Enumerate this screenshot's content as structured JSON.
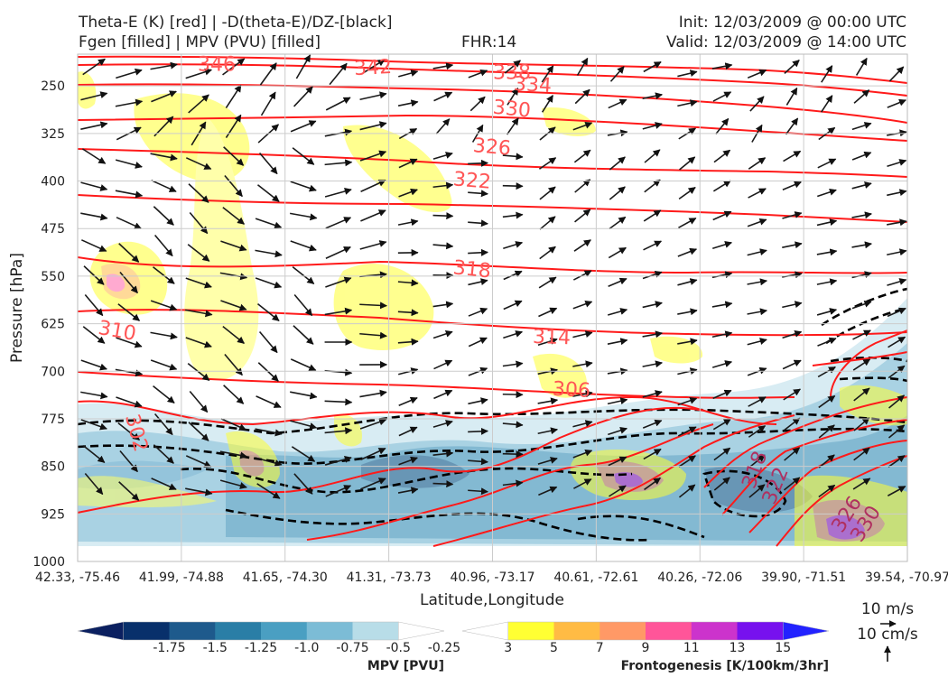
{
  "header": {
    "title_line1": "Theta-E (K) [red] | -D(theta-E)/DZ-[black]",
    "title_line2": "Fgen [filled] | MPV (PVU) [filled]",
    "fhr": "FHR:14",
    "init": "Init: 12/03/2009 @ 00:00 UTC",
    "valid": "Valid: 12/03/2009 @ 14:00 UTC"
  },
  "chart_data": {
    "type": "cross-section",
    "ylabel": "Pressure [hPa]",
    "xlabel": "Latitude,Longitude",
    "y_scale": "pressure (inverted)",
    "ylim": [
      1000,
      200
    ],
    "yticks": [
      250,
      325,
      400,
      475,
      550,
      625,
      700,
      775,
      850,
      925,
      1000
    ],
    "xticks": [
      "42.33, -75.46",
      "41.99, -74.88",
      "41.65, -74.30",
      "41.31, -73.73",
      "40.96, -73.17",
      "40.61, -72.61",
      "40.26, -72.06",
      "39.90, -71.51",
      "39.54, -70.97"
    ],
    "grid": true,
    "theta_e_contours": [
      {
        "label": "346",
        "pressure": 215
      },
      {
        "label": "342",
        "pressure": 220
      },
      {
        "label": "338",
        "pressure": 228
      },
      {
        "label": "334",
        "pressure": 247
      },
      {
        "label": "330",
        "pressure": 285
      },
      {
        "label": "326",
        "pressure": 345
      },
      {
        "label": "322",
        "pressure": 398
      },
      {
        "label": "318",
        "pressure": 538
      },
      {
        "label": "314",
        "pressure": 645
      },
      {
        "label": "310",
        "pressure": 635
      },
      {
        "label": "306",
        "pressure": 728
      },
      {
        "label": "302",
        "pressure": 797
      },
      {
        "label": "318",
        "pressure": 855
      },
      {
        "label": "322",
        "pressure": 880
      },
      {
        "label": "326",
        "pressure": 925
      },
      {
        "label": "330",
        "pressure": 940
      }
    ],
    "colors": {
      "theta_e": "#ff1a1a",
      "stability": "#000000",
      "fgen_weak": "#ffff66",
      "fgen_mid": "#ff9966",
      "fgen_strong": "#cc33cc",
      "mpv": "#3d8fb5"
    },
    "reference_vectors": {
      "horizontal": "10 m/s",
      "vertical": "10 cm/s"
    }
  },
  "colorbars": {
    "mpv": {
      "title": "MPV [PVU]",
      "ticks": [
        "-1.75",
        "-1.5",
        "-1.25",
        "-1.0",
        "-0.75",
        "-0.5",
        "-0.25"
      ],
      "colors": [
        "#0b2060",
        "#08306b",
        "#1e5a8c",
        "#2a7ea6",
        "#4a9fc2",
        "#7cbcd6",
        "#b8dde8",
        "#ffffff"
      ]
    },
    "fgen": {
      "title": "Frontogenesis [K/100km/3hr]",
      "ticks": [
        "3",
        "5",
        "7",
        "9",
        "11",
        "13",
        "15"
      ],
      "colors": [
        "#ffffff",
        "#ffff33",
        "#ffbb44",
        "#ff9966",
        "#ff5599",
        "#cc33cc",
        "#7711ee",
        "#2222ff"
      ]
    }
  }
}
